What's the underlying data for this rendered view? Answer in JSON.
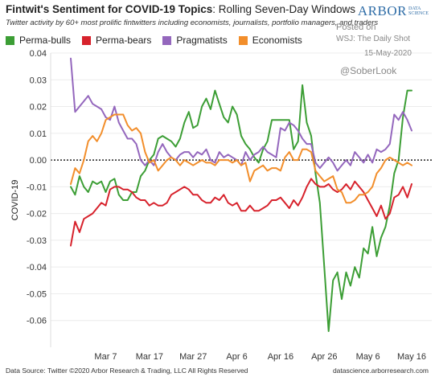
{
  "header": {
    "title_bold": "Fintwit's Sentiment for COVID-19 Topics",
    "title_rest": ": Rolling Seven-Day Windows",
    "subtitle": "Twitter activity by 60+ most prolific fintwitters including economists, journalists, portfolio managers, and traders",
    "logo_main": "ARBOR",
    "logo_sub_1": "DATA",
    "logo_sub_2": "SCIENCE",
    "posted": "Posted on",
    "source_note": "WSJ: The Daily Shot",
    "date_note": "15-May-2020",
    "handle": "@SoberLook"
  },
  "footer": {
    "left": "Data Source: Twitter  ©2020 Arbor Research & Trading, LLC  All Rights Reserved",
    "right": "datascience.arborresearch.com"
  },
  "colors": {
    "perma_bulls": "#3c9e35",
    "perma_bears": "#d7222c",
    "pragmatists": "#9467bd",
    "economists": "#f28e2b"
  },
  "chart_data": {
    "type": "line",
    "title": "Fintwit's Sentiment for COVID-19 Topics: Rolling Seven-Day Windows",
    "ylabel": "COVID-19",
    "xlabel": "",
    "ylim": [
      -0.07,
      0.04
    ],
    "y_ticks": [
      0.04,
      0.03,
      0.02,
      0.01,
      0.0,
      -0.01,
      -0.02,
      -0.03,
      -0.04,
      -0.05,
      -0.06
    ],
    "y_tick_labels": [
      "0.04",
      "0.03",
      "0.02",
      "0.01",
      "0.00",
      "-0.01",
      "-0.02",
      "-0.03",
      "-0.04",
      "-0.05",
      "-0.06"
    ],
    "x_ticks": [
      "Mar 7",
      "Mar 17",
      "Mar 27",
      "Apr 6",
      "Apr 16",
      "Apr 26",
      "May 6",
      "May 16"
    ],
    "x_start": "2020-02-28",
    "x_end": "2020-05-16",
    "grid": "horizontal",
    "zero_line": "dotted",
    "legend": "top-left",
    "series": [
      {
        "name": "Perma-bulls",
        "color": "#3c9e35",
        "x": [
          "2020-02-28",
          "2020-02-29",
          "2020-03-01",
          "2020-03-02",
          "2020-03-03",
          "2020-03-04",
          "2020-03-05",
          "2020-03-06",
          "2020-03-07",
          "2020-03-08",
          "2020-03-09",
          "2020-03-10",
          "2020-03-11",
          "2020-03-12",
          "2020-03-13",
          "2020-03-14",
          "2020-03-15",
          "2020-03-16",
          "2020-03-17",
          "2020-03-18",
          "2020-03-19",
          "2020-03-20",
          "2020-03-21",
          "2020-03-22",
          "2020-03-23",
          "2020-03-24",
          "2020-03-25",
          "2020-03-26",
          "2020-03-27",
          "2020-03-28",
          "2020-03-29",
          "2020-03-30",
          "2020-03-31",
          "2020-04-01",
          "2020-04-02",
          "2020-04-03",
          "2020-04-04",
          "2020-04-05",
          "2020-04-06",
          "2020-04-07",
          "2020-04-08",
          "2020-04-09",
          "2020-04-10",
          "2020-04-11",
          "2020-04-12",
          "2020-04-13",
          "2020-04-14",
          "2020-04-15",
          "2020-04-16",
          "2020-04-17",
          "2020-04-18",
          "2020-04-19",
          "2020-04-20",
          "2020-04-21",
          "2020-04-22",
          "2020-04-23",
          "2020-04-24",
          "2020-04-25",
          "2020-04-26",
          "2020-04-27",
          "2020-04-28",
          "2020-04-29",
          "2020-04-30",
          "2020-05-01",
          "2020-05-02",
          "2020-05-03",
          "2020-05-04",
          "2020-05-05",
          "2020-05-06",
          "2020-05-07",
          "2020-05-08",
          "2020-05-09",
          "2020-05-10",
          "2020-05-11",
          "2020-05-12",
          "2020-05-13",
          "2020-05-14",
          "2020-05-15",
          "2020-05-16"
        ],
        "values": [
          -0.01,
          -0.013,
          -0.006,
          -0.01,
          -0.012,
          -0.008,
          -0.009,
          -0.008,
          -0.012,
          -0.008,
          -0.007,
          -0.013,
          -0.015,
          -0.015,
          -0.012,
          -0.012,
          -0.006,
          -0.004,
          0.0,
          0.002,
          0.008,
          0.009,
          0.008,
          0.007,
          0.005,
          0.008,
          0.014,
          0.018,
          0.012,
          0.013,
          0.02,
          0.023,
          0.019,
          0.026,
          0.021,
          0.016,
          0.014,
          0.02,
          0.017,
          0.009,
          0.006,
          0.004,
          0.001,
          -0.001,
          0.004,
          0.007,
          0.015,
          0.015,
          0.015,
          0.015,
          0.015,
          0.004,
          0.007,
          0.028,
          0.014,
          0.009,
          -0.005,
          -0.016,
          -0.04,
          -0.064,
          -0.045,
          -0.042,
          -0.052,
          -0.042,
          -0.047,
          -0.04,
          -0.044,
          -0.033,
          -0.035,
          -0.025,
          -0.036,
          -0.029,
          -0.025,
          -0.017,
          -0.005,
          0.0,
          0.016,
          0.026,
          0.026
        ]
      },
      {
        "name": "Perma-bears",
        "color": "#d7222c",
        "x": [
          "2020-02-28",
          "2020-02-29",
          "2020-03-01",
          "2020-03-02",
          "2020-03-03",
          "2020-03-04",
          "2020-03-05",
          "2020-03-06",
          "2020-03-07",
          "2020-03-08",
          "2020-03-09",
          "2020-03-10",
          "2020-03-11",
          "2020-03-12",
          "2020-03-13",
          "2020-03-14",
          "2020-03-15",
          "2020-03-16",
          "2020-03-17",
          "2020-03-18",
          "2020-03-19",
          "2020-03-20",
          "2020-03-21",
          "2020-03-22",
          "2020-03-23",
          "2020-03-24",
          "2020-03-25",
          "2020-03-26",
          "2020-03-27",
          "2020-03-28",
          "2020-03-29",
          "2020-03-30",
          "2020-03-31",
          "2020-04-01",
          "2020-04-02",
          "2020-04-03",
          "2020-04-04",
          "2020-04-05",
          "2020-04-06",
          "2020-04-07",
          "2020-04-08",
          "2020-04-09",
          "2020-04-10",
          "2020-04-11",
          "2020-04-12",
          "2020-04-13",
          "2020-04-14",
          "2020-04-15",
          "2020-04-16",
          "2020-04-17",
          "2020-04-18",
          "2020-04-19",
          "2020-04-20",
          "2020-04-21",
          "2020-04-22",
          "2020-04-23",
          "2020-04-24",
          "2020-04-25",
          "2020-04-26",
          "2020-04-27",
          "2020-04-28",
          "2020-04-29",
          "2020-04-30",
          "2020-05-01",
          "2020-05-02",
          "2020-05-03",
          "2020-05-04",
          "2020-05-05",
          "2020-05-06",
          "2020-05-07",
          "2020-05-08",
          "2020-05-09",
          "2020-05-10",
          "2020-05-11",
          "2020-05-12",
          "2020-05-13",
          "2020-05-14",
          "2020-05-15",
          "2020-05-16"
        ],
        "values": [
          -0.032,
          -0.023,
          -0.027,
          -0.022,
          -0.021,
          -0.02,
          -0.018,
          -0.016,
          -0.017,
          -0.011,
          -0.01,
          -0.01,
          -0.011,
          -0.011,
          -0.012,
          -0.014,
          -0.015,
          -0.015,
          -0.017,
          -0.016,
          -0.017,
          -0.017,
          -0.016,
          -0.013,
          -0.012,
          -0.011,
          -0.01,
          -0.011,
          -0.013,
          -0.013,
          -0.015,
          -0.016,
          -0.016,
          -0.014,
          -0.015,
          -0.013,
          -0.016,
          -0.017,
          -0.016,
          -0.019,
          -0.019,
          -0.017,
          -0.019,
          -0.019,
          -0.018,
          -0.017,
          -0.015,
          -0.015,
          -0.014,
          -0.016,
          -0.018,
          -0.015,
          -0.017,
          -0.014,
          -0.01,
          -0.007,
          -0.009,
          -0.01,
          -0.01,
          -0.009,
          -0.011,
          -0.012,
          -0.011,
          -0.009,
          -0.011,
          -0.008,
          -0.01,
          -0.012,
          -0.015,
          -0.018,
          -0.021,
          -0.017,
          -0.022,
          -0.02,
          -0.014,
          -0.013,
          -0.01,
          -0.014,
          -0.009
        ]
      },
      {
        "name": "Pragmatists",
        "color": "#9467bd",
        "x": [
          "2020-02-28",
          "2020-02-29",
          "2020-03-01",
          "2020-03-02",
          "2020-03-03",
          "2020-03-04",
          "2020-03-05",
          "2020-03-06",
          "2020-03-07",
          "2020-03-08",
          "2020-03-09",
          "2020-03-10",
          "2020-03-11",
          "2020-03-12",
          "2020-03-13",
          "2020-03-14",
          "2020-03-15",
          "2020-03-16",
          "2020-03-17",
          "2020-03-18",
          "2020-03-19",
          "2020-03-20",
          "2020-03-21",
          "2020-03-22",
          "2020-03-23",
          "2020-03-24",
          "2020-03-25",
          "2020-03-26",
          "2020-03-27",
          "2020-03-28",
          "2020-03-29",
          "2020-03-30",
          "2020-03-31",
          "2020-04-01",
          "2020-04-02",
          "2020-04-03",
          "2020-04-04",
          "2020-04-05",
          "2020-04-06",
          "2020-04-07",
          "2020-04-08",
          "2020-04-09",
          "2020-04-10",
          "2020-04-11",
          "2020-04-12",
          "2020-04-13",
          "2020-04-14",
          "2020-04-15",
          "2020-04-16",
          "2020-04-17",
          "2020-04-18",
          "2020-04-19",
          "2020-04-20",
          "2020-04-21",
          "2020-04-22",
          "2020-04-23",
          "2020-04-24",
          "2020-04-25",
          "2020-04-26",
          "2020-04-27",
          "2020-04-28",
          "2020-04-29",
          "2020-04-30",
          "2020-05-01",
          "2020-05-02",
          "2020-05-03",
          "2020-05-04",
          "2020-05-05",
          "2020-05-06",
          "2020-05-07",
          "2020-05-08",
          "2020-05-09",
          "2020-05-10",
          "2020-05-11",
          "2020-05-12",
          "2020-05-13",
          "2020-05-14",
          "2020-05-15",
          "2020-05-16"
        ],
        "values": [
          0.038,
          0.018,
          0.02,
          0.022,
          0.024,
          0.021,
          0.02,
          0.019,
          0.016,
          0.015,
          0.02,
          0.014,
          0.011,
          0.008,
          0.008,
          0.006,
          0.0,
          -0.002,
          0.0,
          -0.002,
          0.003,
          0.006,
          0.003,
          0.001,
          0.0,
          0.002,
          0.003,
          0.003,
          0.001,
          0.003,
          0.002,
          0.004,
          0.0,
          -0.001,
          0.003,
          0.001,
          0.002,
          0.001,
          0.0,
          -0.002,
          0.003,
          0.0,
          0.002,
          0.003,
          0.005,
          0.003,
          0.002,
          0.001,
          0.012,
          0.011,
          0.014,
          0.013,
          0.011,
          0.008,
          0.006,
          0.006,
          -0.001,
          -0.003,
          -0.001,
          0.001,
          -0.001,
          -0.004,
          -0.002,
          0.0,
          -0.002,
          0.003,
          0.001,
          -0.001,
          0.002,
          -0.001,
          0.004,
          0.003,
          0.004,
          0.006,
          0.017,
          0.015,
          0.018,
          0.015,
          0.011
        ]
      },
      {
        "name": "Economists",
        "color": "#f28e2b",
        "x": [
          "2020-02-28",
          "2020-02-29",
          "2020-03-01",
          "2020-03-02",
          "2020-03-03",
          "2020-03-04",
          "2020-03-05",
          "2020-03-06",
          "2020-03-07",
          "2020-03-08",
          "2020-03-09",
          "2020-03-10",
          "2020-03-11",
          "2020-03-12",
          "2020-03-13",
          "2020-03-14",
          "2020-03-15",
          "2020-03-16",
          "2020-03-17",
          "2020-03-18",
          "2020-03-19",
          "2020-03-20",
          "2020-03-21",
          "2020-03-22",
          "2020-03-23",
          "2020-03-24",
          "2020-03-25",
          "2020-03-26",
          "2020-03-27",
          "2020-03-28",
          "2020-03-29",
          "2020-03-30",
          "2020-03-31",
          "2020-04-01",
          "2020-04-02",
          "2020-04-03",
          "2020-04-04",
          "2020-04-05",
          "2020-04-06",
          "2020-04-07",
          "2020-04-08",
          "2020-04-09",
          "2020-04-10",
          "2020-04-11",
          "2020-04-12",
          "2020-04-13",
          "2020-04-14",
          "2020-04-15",
          "2020-04-16",
          "2020-04-17",
          "2020-04-18",
          "2020-04-19",
          "2020-04-20",
          "2020-04-21",
          "2020-04-22",
          "2020-04-23",
          "2020-04-24",
          "2020-04-25",
          "2020-04-26",
          "2020-04-27",
          "2020-04-28",
          "2020-04-29",
          "2020-04-30",
          "2020-05-01",
          "2020-05-02",
          "2020-05-03",
          "2020-05-04",
          "2020-05-05",
          "2020-05-06",
          "2020-05-07",
          "2020-05-08",
          "2020-05-09",
          "2020-05-10",
          "2020-05-11",
          "2020-05-12",
          "2020-05-13",
          "2020-05-14",
          "2020-05-15",
          "2020-05-16"
        ],
        "values": [
          -0.009,
          -0.003,
          -0.005,
          0.0,
          0.007,
          0.009,
          0.007,
          0.01,
          0.015,
          0.016,
          0.017,
          0.017,
          0.017,
          0.013,
          0.011,
          0.012,
          0.01,
          0.003,
          -0.001,
          0.0,
          -0.004,
          -0.002,
          0.0,
          0.001,
          0.0,
          -0.002,
          0.0,
          -0.001,
          -0.002,
          -0.001,
          0.0,
          -0.001,
          -0.001,
          -0.002,
          0.0,
          0.0,
          0.0,
          -0.001,
          0.0,
          -0.002,
          -0.001,
          -0.008,
          -0.004,
          -0.003,
          -0.002,
          -0.004,
          -0.003,
          -0.003,
          -0.004,
          0.001,
          0.003,
          0.0,
          0.0,
          0.004,
          0.004,
          0.003,
          -0.004,
          -0.006,
          -0.008,
          -0.007,
          -0.006,
          -0.011,
          -0.012,
          -0.016,
          -0.016,
          -0.015,
          -0.013,
          -0.013,
          -0.012,
          -0.01,
          -0.005,
          -0.003,
          0.0,
          0.001,
          0.0,
          -0.001,
          -0.002,
          -0.001,
          -0.002
        ]
      }
    ]
  }
}
